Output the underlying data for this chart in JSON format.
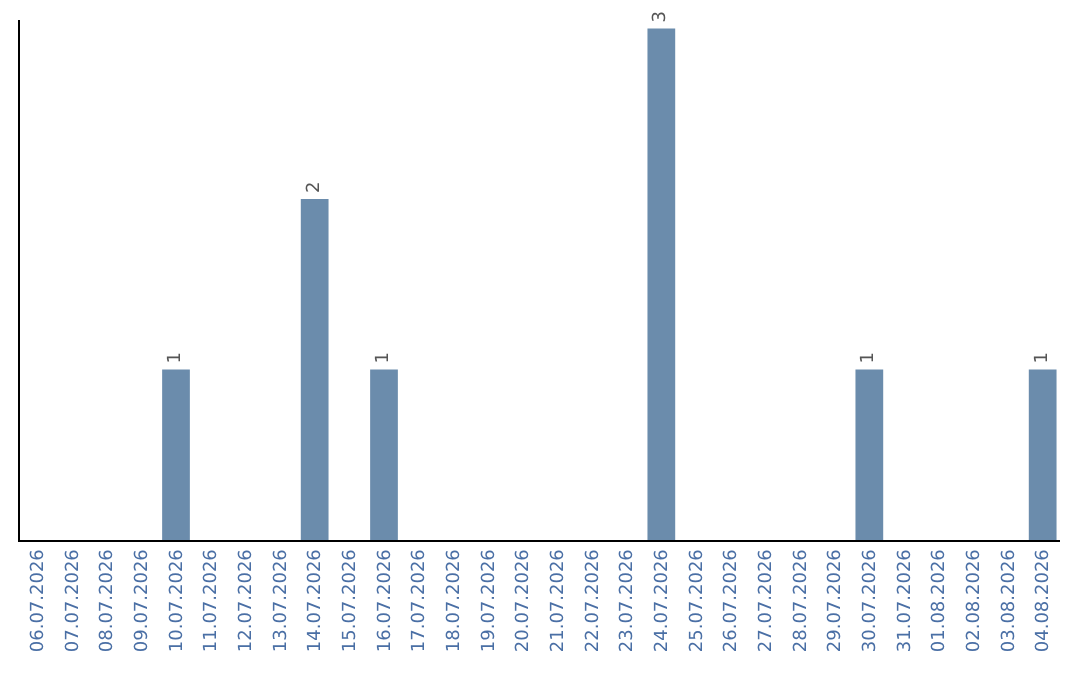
{
  "chart_data": {
    "type": "bar",
    "categories": [
      "06.07.2026",
      "07.07.2026",
      "08.07.2026",
      "09.07.2026",
      "10.07.2026",
      "11.07.2026",
      "12.07.2026",
      "13.07.2026",
      "14.07.2026",
      "15.07.2026",
      "16.07.2026",
      "17.07.2026",
      "18.07.2026",
      "19.07.2026",
      "20.07.2026",
      "21.07.2026",
      "22.07.2026",
      "23.07.2026",
      "24.07.2026",
      "25.07.2026",
      "26.07.2026",
      "27.07.2026",
      "28.07.2026",
      "29.07.2026",
      "30.07.2026",
      "31.07.2026",
      "01.08.2026",
      "02.08.2026",
      "03.08.2026",
      "04.08.2026"
    ],
    "values": [
      0,
      0,
      0,
      0,
      1,
      0,
      0,
      0,
      2,
      0,
      1,
      0,
      0,
      0,
      0,
      0,
      0,
      0,
      3,
      0,
      0,
      0,
      0,
      0,
      1,
      0,
      0,
      0,
      0,
      1
    ],
    "value_labels": [
      null,
      null,
      null,
      null,
      "1",
      null,
      null,
      null,
      "2",
      null,
      "1",
      null,
      null,
      null,
      null,
      null,
      null,
      null,
      "3",
      null,
      null,
      null,
      null,
      null,
      "1",
      null,
      null,
      null,
      null,
      "1"
    ],
    "color": "#6b8cac",
    "ylim": [
      0,
      3.05
    ],
    "tick_labels": "x",
    "legend": false
  }
}
